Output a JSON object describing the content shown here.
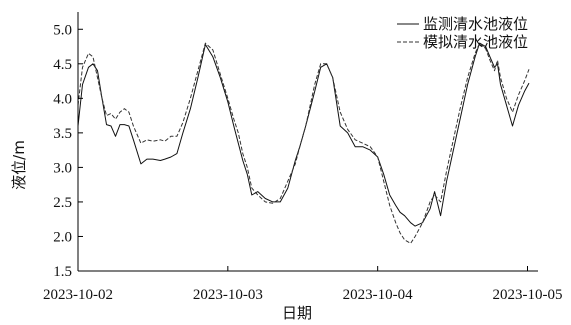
{
  "chart_data": {
    "type": "line",
    "xlabel": "日期",
    "ylabel": "液位/m",
    "x_tick_labels": [
      "2023-10-02",
      "2023-10-03",
      "2023-10-04",
      "2023-10-05"
    ],
    "y_ticks": [
      "1.5",
      "2.0",
      "2.5",
      "3.0",
      "3.5",
      "4.0",
      "4.5",
      "5.0"
    ],
    "ylim": [
      1.5,
      5.25
    ],
    "xlim_days": [
      0,
      3.03
    ],
    "grid": false,
    "legend_position": "top-right",
    "series": [
      {
        "name": "监测清水池液位",
        "style": "solid",
        "color": "#111111",
        "x": [
          0,
          0.03,
          0.07,
          0.1,
          0.13,
          0.16,
          0.19,
          0.22,
          0.25,
          0.28,
          0.31,
          0.34,
          0.37,
          0.42,
          0.46,
          0.5,
          0.55,
          0.58,
          0.62,
          0.66,
          0.7,
          0.75,
          0.8,
          0.85,
          0.9,
          0.95,
          1.0,
          1.04,
          1.07,
          1.1,
          1.13,
          1.16,
          1.2,
          1.25,
          1.3,
          1.35,
          1.4,
          1.45,
          1.48,
          1.52,
          1.55,
          1.58,
          1.62,
          1.66,
          1.7,
          1.75,
          1.8,
          1.85,
          1.9,
          1.95,
          2.0,
          2.04,
          2.08,
          2.12,
          2.15,
          2.18,
          2.22,
          2.25,
          2.3,
          2.35,
          2.38,
          2.42,
          2.46,
          2.5,
          2.55,
          2.6,
          2.65,
          2.68,
          2.72,
          2.75,
          2.78,
          2.8,
          2.82,
          2.86,
          2.9,
          2.94,
          2.98,
          3.01
        ],
        "values": [
          3.6,
          4.2,
          4.45,
          4.5,
          4.4,
          4.0,
          3.62,
          3.6,
          3.45,
          3.62,
          3.62,
          3.6,
          3.4,
          3.05,
          3.12,
          3.12,
          3.1,
          3.12,
          3.15,
          3.2,
          3.5,
          3.85,
          4.3,
          4.78,
          4.6,
          4.3,
          3.95,
          3.6,
          3.35,
          3.1,
          2.9,
          2.6,
          2.65,
          2.55,
          2.5,
          2.5,
          2.7,
          3.1,
          3.3,
          3.6,
          3.85,
          4.1,
          4.45,
          4.5,
          4.3,
          3.6,
          3.5,
          3.3,
          3.3,
          3.25,
          3.15,
          2.9,
          2.6,
          2.45,
          2.35,
          2.3,
          2.2,
          2.15,
          2.2,
          2.4,
          2.65,
          2.3,
          2.8,
          3.2,
          3.7,
          4.2,
          4.6,
          4.8,
          4.75,
          4.6,
          4.45,
          4.5,
          4.2,
          3.9,
          3.6,
          3.9,
          4.1,
          4.22
        ]
      },
      {
        "name": "模拟清水池液位",
        "style": "dashed",
        "color": "#333333",
        "x": [
          0,
          0.03,
          0.07,
          0.1,
          0.13,
          0.16,
          0.19,
          0.22,
          0.25,
          0.28,
          0.31,
          0.34,
          0.37,
          0.42,
          0.46,
          0.5,
          0.55,
          0.58,
          0.62,
          0.66,
          0.7,
          0.75,
          0.8,
          0.85,
          0.9,
          0.95,
          1.0,
          1.04,
          1.07,
          1.1,
          1.13,
          1.16,
          1.2,
          1.25,
          1.3,
          1.35,
          1.4,
          1.45,
          1.48,
          1.52,
          1.55,
          1.58,
          1.62,
          1.66,
          1.7,
          1.75,
          1.8,
          1.85,
          1.9,
          1.95,
          2.0,
          2.04,
          2.08,
          2.12,
          2.15,
          2.18,
          2.22,
          2.25,
          2.3,
          2.35,
          2.38,
          2.42,
          2.46,
          2.5,
          2.55,
          2.6,
          2.65,
          2.68,
          2.72,
          2.75,
          2.78,
          2.8,
          2.82,
          2.86,
          2.9,
          2.94,
          2.98,
          3.01
        ],
        "values": [
          3.9,
          4.45,
          4.65,
          4.6,
          4.3,
          4.0,
          3.75,
          3.78,
          3.7,
          3.8,
          3.85,
          3.8,
          3.6,
          3.35,
          3.4,
          3.38,
          3.4,
          3.38,
          3.45,
          3.45,
          3.65,
          4.0,
          4.4,
          4.8,
          4.7,
          4.35,
          4.0,
          3.7,
          3.5,
          3.2,
          3.0,
          2.7,
          2.6,
          2.5,
          2.48,
          2.55,
          2.8,
          3.05,
          3.3,
          3.6,
          3.9,
          4.2,
          4.5,
          4.5,
          4.3,
          3.8,
          3.55,
          3.4,
          3.35,
          3.3,
          3.15,
          2.8,
          2.45,
          2.2,
          2.05,
          1.95,
          1.9,
          2.0,
          2.2,
          2.5,
          2.6,
          2.5,
          2.95,
          3.35,
          3.85,
          4.3,
          4.65,
          4.8,
          4.72,
          4.55,
          4.4,
          4.55,
          4.3,
          4.0,
          3.8,
          4.05,
          4.25,
          4.42
        ]
      }
    ]
  }
}
